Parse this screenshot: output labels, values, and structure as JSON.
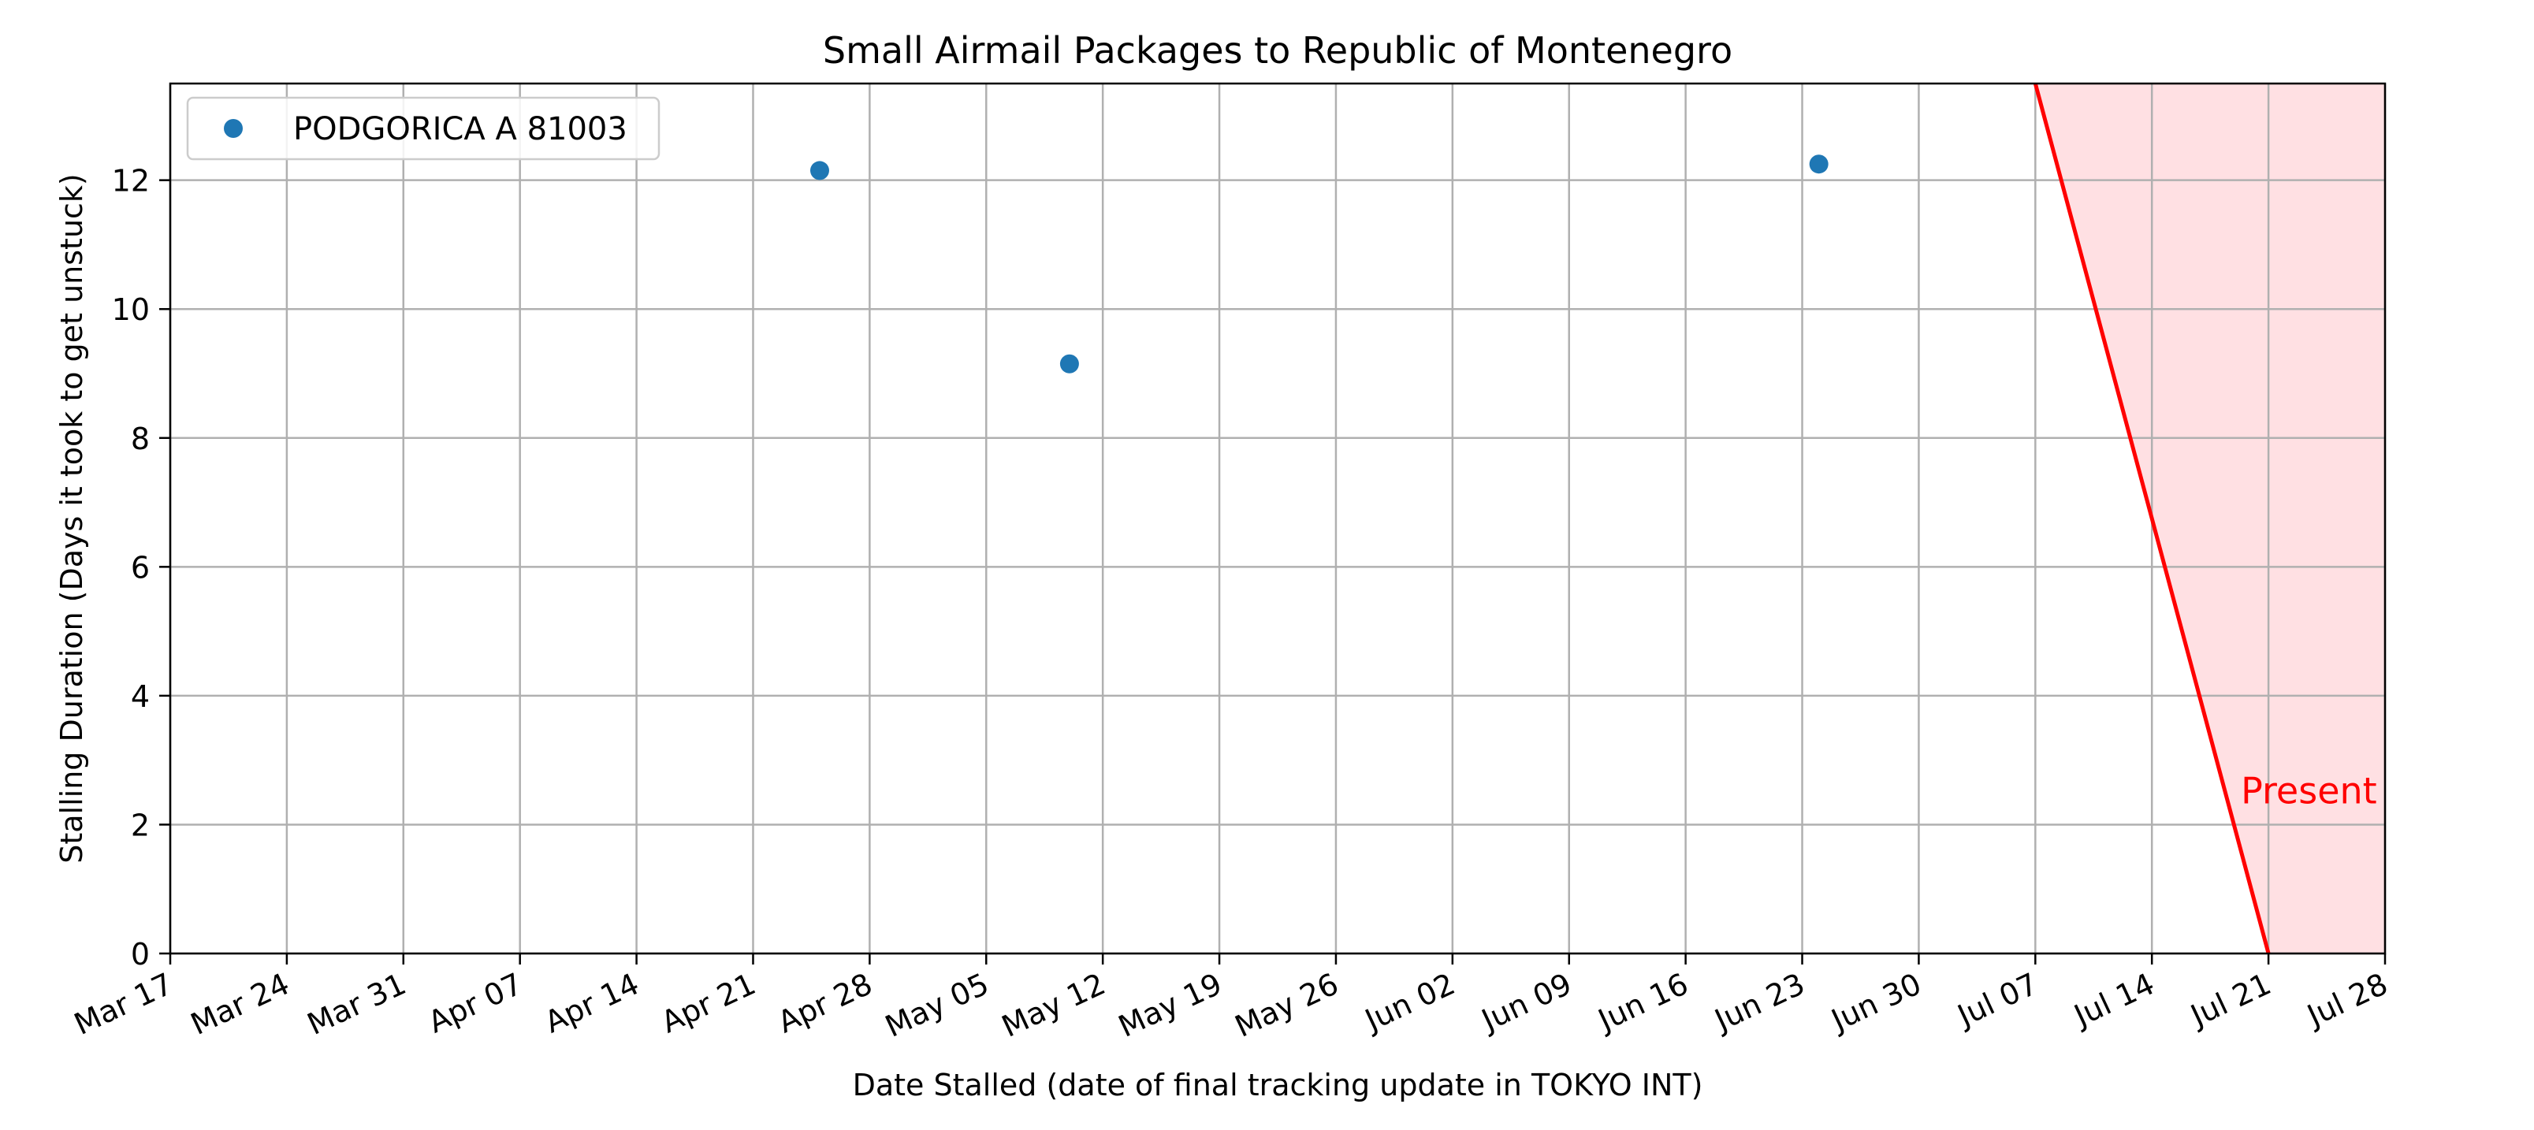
{
  "chart_data": {
    "type": "scatter",
    "title": "Small Airmail Packages to Republic of Montenegro",
    "xlabel": "Date Stalled (date of final tracking update in TOKYO INT)",
    "ylabel": "Stalling Duration (Days it took to get unstuck)",
    "x_axis_type": "date",
    "xlim": [
      "2024-03-17",
      "2024-07-28"
    ],
    "ylim": [
      0,
      13.5
    ],
    "x_ticks": [
      "Mar 17",
      "Mar 24",
      "Mar 31",
      "Apr 07",
      "Apr 14",
      "Apr 21",
      "Apr 28",
      "May 05",
      "May 12",
      "May 19",
      "May 26",
      "Jun 02",
      "Jun 09",
      "Jun 16",
      "Jun 23",
      "Jun 30",
      "Jul 07",
      "Jul 14",
      "Jul 21",
      "Jul 28"
    ],
    "x_tick_dates": [
      "2024-03-17",
      "2024-03-24",
      "2024-03-31",
      "2024-04-07",
      "2024-04-14",
      "2024-04-21",
      "2024-04-28",
      "2024-05-05",
      "2024-05-12",
      "2024-05-19",
      "2024-05-26",
      "2024-06-02",
      "2024-06-09",
      "2024-06-16",
      "2024-06-23",
      "2024-06-30",
      "2024-07-07",
      "2024-07-14",
      "2024-07-21",
      "2024-07-28"
    ],
    "y_ticks": [
      0,
      2,
      4,
      6,
      8,
      10,
      12
    ],
    "grid": true,
    "legend_position": "upper-left",
    "series": [
      {
        "name": "PODGORICA A 81003",
        "color": "#1f77b4",
        "points": [
          {
            "x": "2024-04-25",
            "y": 12.15
          },
          {
            "x": "2024-05-10",
            "y": 9.15
          },
          {
            "x": "2024-06-24",
            "y": 12.25
          }
        ]
      }
    ],
    "present_marker": {
      "label": "Present",
      "date": "2024-07-21",
      "line_start": {
        "x": "2024-07-07",
        "y": 13.5
      },
      "line_color": "#ff0000",
      "shade_color": "#ffe0e3"
    }
  }
}
